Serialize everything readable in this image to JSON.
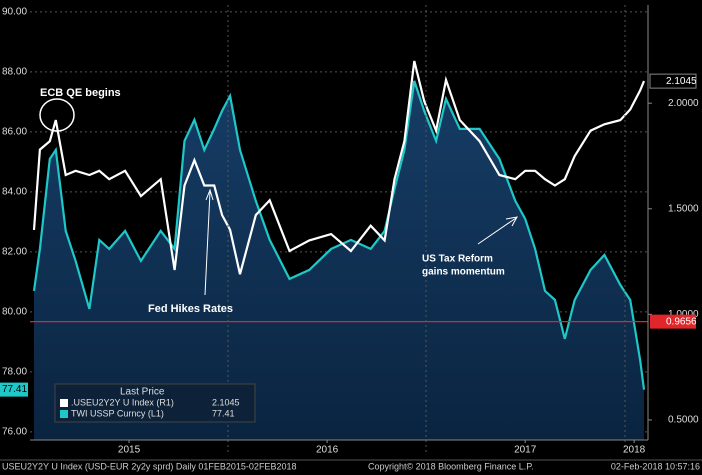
{
  "chart_data": {
    "type": "line",
    "x": [
      2015.02,
      2015.05,
      2015.1,
      2015.13,
      2015.18,
      2015.23,
      2015.3,
      2015.35,
      2015.4,
      2015.48,
      2015.56,
      2015.66,
      2015.73,
      2015.78,
      2015.83,
      2015.88,
      2015.93,
      2015.97,
      2016.01,
      2016.06,
      2016.14,
      2016.21,
      2016.31,
      2016.41,
      2016.52,
      2016.62,
      2016.72,
      2016.79,
      2016.84,
      2016.89,
      2016.94,
      2016.99,
      2017.05,
      2017.1,
      2017.17,
      2017.27,
      2017.37,
      2017.45,
      2017.5,
      2017.55,
      2017.6,
      2017.65,
      2017.7,
      2017.75,
      2017.83,
      2017.9,
      2017.98,
      2018.03,
      2018.08,
      2018.1
    ],
    "series": [
      {
        "name": "TWI USSP Curncy  (L1)",
        "color": "#1ec8c8",
        "axis": "y",
        "fill": true,
        "values": [
          80.7,
          82.1,
          85.1,
          85.4,
          82.7,
          81.7,
          80.1,
          82.4,
          82.1,
          82.7,
          81.7,
          82.7,
          82.1,
          85.7,
          86.4,
          85.4,
          86.1,
          86.7,
          87.2,
          85.4,
          83.7,
          82.4,
          81.1,
          81.4,
          82.1,
          82.4,
          82.1,
          82.7,
          84.1,
          85.4,
          87.7,
          86.7,
          85.7,
          87.1,
          86.1,
          86.1,
          85.1,
          83.7,
          83.1,
          82.1,
          80.7,
          80.4,
          79.1,
          80.4,
          81.4,
          81.9,
          80.9,
          80.4,
          78.4,
          77.41
        ],
        "last_label": "77.41"
      },
      {
        "name": ".USEU2Y2Y U Index  (R1)",
        "color": "#ffffff",
        "axis": "y2",
        "fill": false,
        "values": [
          1.4,
          1.78,
          1.82,
          1.92,
          1.66,
          1.68,
          1.66,
          1.68,
          1.64,
          1.68,
          1.56,
          1.64,
          1.21,
          1.61,
          1.73,
          1.61,
          1.61,
          1.47,
          1.4,
          1.19,
          1.47,
          1.54,
          1.3,
          1.35,
          1.38,
          1.3,
          1.42,
          1.35,
          1.64,
          1.82,
          2.2,
          2.01,
          1.87,
          2.11,
          1.92,
          1.82,
          1.66,
          1.64,
          1.68,
          1.68,
          1.64,
          1.61,
          1.64,
          1.75,
          1.87,
          1.9,
          1.92,
          1.97,
          2.06,
          2.1045
        ],
        "last_label": "2.1045"
      }
    ],
    "xlim": [
      2015.0,
      2018.12
    ],
    "xticks": [
      {
        "value": 2015.5,
        "label": "2015"
      },
      {
        "value": 2016.5,
        "label": "2016"
      },
      {
        "value": 2017.5,
        "label": "2017"
      },
      {
        "value": 2018.05,
        "label": "2018"
      }
    ],
    "ylim": [
      75.73,
      90.23
    ],
    "yticks": [
      {
        "value": 76,
        "label": "76.00"
      },
      {
        "value": 78,
        "label": "78.00"
      },
      {
        "value": 80,
        "label": "80.00"
      },
      {
        "value": 82,
        "label": "82.00"
      },
      {
        "value": 84,
        "label": "84.00"
      },
      {
        "value": 86,
        "label": "86.00"
      },
      {
        "value": 88,
        "label": "88.00"
      },
      {
        "value": 90,
        "label": "90.00"
      }
    ],
    "y2lim": [
      0.405,
      2.465
    ],
    "y2ticks": [
      {
        "value": 0.5,
        "label": "0.5000"
      },
      {
        "value": 1.0,
        "label": "1.0000"
      },
      {
        "value": 1.5,
        "label": "1.5000"
      },
      {
        "value": 2.0,
        "label": "2.0000"
      }
    ],
    "reference_line": {
      "value": 0.9656,
      "label": "0.9656",
      "axis": "y2",
      "color": "#e0262b"
    },
    "grid": true,
    "legend_title": "Last Price",
    "annotations": [
      "ECB QE begins",
      "Fed Hikes Rates",
      "US Tax Reform",
      "gains momentum"
    ],
    "footer": [
      "USEU2Y2Y U Index (USD-EUR 2y2y sprd)  Daily 01FEB2015-02FEB2018",
      "Copyright© 2018 Bloomberg Finance L.P.",
      "02-Feb-2018 10:57:16"
    ]
  }
}
